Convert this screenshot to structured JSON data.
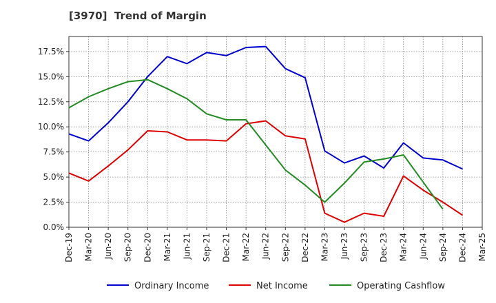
{
  "chart_data": {
    "type": "line",
    "title": "[3970]  Trend of Margin",
    "xlabel": "",
    "ylabel": "",
    "categories": [
      "Dec-19",
      "Mar-20",
      "Jun-20",
      "Sep-20",
      "Dec-20",
      "Mar-21",
      "Jun-21",
      "Sep-21",
      "Dec-21",
      "Mar-22",
      "Jun-22",
      "Sep-22",
      "Dec-22",
      "Mar-23",
      "Jun-23",
      "Sep-23",
      "Dec-23",
      "Mar-24",
      "Jun-24",
      "Sep-24",
      "Dec-24",
      "Mar-25"
    ],
    "ylim": [
      0,
      19
    ],
    "yticks": [
      "0.0%",
      "2.5%",
      "5.0%",
      "7.5%",
      "10.0%",
      "12.5%",
      "15.0%",
      "17.5%"
    ],
    "ytick_values": [
      0,
      2.5,
      5,
      7.5,
      10,
      12.5,
      15,
      17.5
    ],
    "grid": true,
    "legend_position": "bottom",
    "series": [
      {
        "name": "Ordinary Income",
        "color": "#0000cc",
        "values": [
          9.3,
          8.6,
          10.4,
          12.5,
          15.0,
          17.0,
          16.3,
          17.4,
          17.1,
          17.9,
          18.0,
          15.8,
          14.9,
          7.6,
          6.4,
          7.1,
          5.9,
          8.4,
          6.9,
          6.7,
          5.8,
          null
        ]
      },
      {
        "name": "Net Income",
        "color": "#dd0000",
        "values": [
          5.4,
          4.6,
          6.1,
          7.7,
          9.6,
          9.5,
          8.7,
          8.7,
          8.6,
          10.3,
          10.6,
          9.1,
          8.8,
          1.4,
          0.5,
          1.4,
          1.1,
          5.1,
          3.7,
          2.5,
          1.2,
          null
        ]
      },
      {
        "name": "Operating Cashflow",
        "color": "#228b22",
        "values": [
          11.9,
          13.0,
          13.8,
          14.5,
          14.7,
          13.8,
          12.8,
          11.3,
          10.7,
          10.7,
          8.2,
          5.7,
          4.2,
          2.5,
          4.4,
          6.5,
          6.8,
          7.2,
          4.5,
          1.8,
          null,
          null
        ]
      }
    ]
  }
}
